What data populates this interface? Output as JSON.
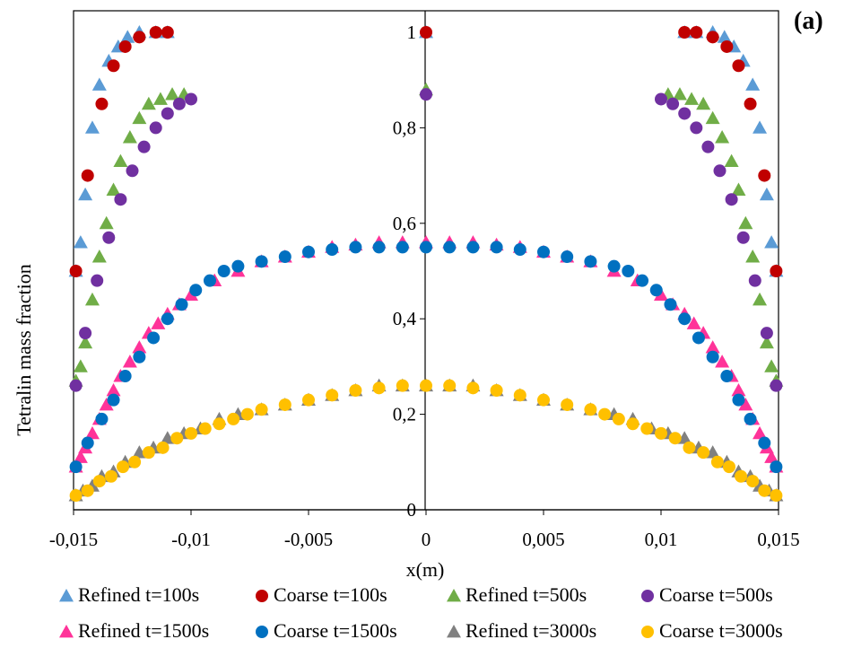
{
  "panel_label": "(a)",
  "chart_data": {
    "type": "scatter",
    "title": "",
    "xlabel": "x(m)",
    "ylabel": "Tetralin mass fraction",
    "xlim": [
      -0.015,
      0.015
    ],
    "ylim": [
      0,
      1
    ],
    "xticks": [
      "-0,015",
      "-0,01",
      "-0,005",
      "0",
      "0,005",
      "0,01",
      "0,015"
    ],
    "yticks": [
      "0",
      "0,2",
      "0,4",
      "0,6",
      "0,8",
      "1"
    ],
    "grid": false,
    "legend_position": "bottom",
    "series": [
      {
        "name": "Refined t=100s",
        "marker": "triangle",
        "color": "#5b9bd5",
        "x": [
          -0.0149,
          -0.0147,
          -0.0145,
          -0.0142,
          -0.0139,
          -0.0135,
          -0.0131,
          -0.0127,
          -0.0122,
          -0.0115,
          -0.011,
          0.0,
          0.011,
          0.0115,
          0.0122,
          0.0127,
          0.0131,
          0.0135,
          0.0139,
          0.0142,
          0.0145,
          0.0147,
          0.0149
        ],
        "y": [
          0.5,
          0.56,
          0.66,
          0.8,
          0.89,
          0.94,
          0.97,
          0.99,
          1.0,
          1.0,
          1.0,
          1.0,
          1.0,
          1.0,
          1.0,
          0.99,
          0.97,
          0.94,
          0.89,
          0.8,
          0.66,
          0.56,
          0.5
        ]
      },
      {
        "name": "Coarse t=100s",
        "marker": "circle",
        "color": "#c00000",
        "x": [
          -0.0149,
          -0.0144,
          -0.0138,
          -0.0133,
          -0.0128,
          -0.0122,
          -0.0115,
          -0.011,
          0.0,
          0.011,
          0.0115,
          0.0122,
          0.0128,
          0.0133,
          0.0138,
          0.0144,
          0.0149
        ],
        "y": [
          0.5,
          0.7,
          0.85,
          0.93,
          0.97,
          0.99,
          1.0,
          1.0,
          1.0,
          1.0,
          1.0,
          0.99,
          0.97,
          0.93,
          0.85,
          0.7,
          0.5
        ]
      },
      {
        "name": "Refined t=500s",
        "marker": "triangle",
        "color": "#70ad47",
        "x": [
          -0.0149,
          -0.0147,
          -0.0145,
          -0.0142,
          -0.0139,
          -0.0136,
          -0.0133,
          -0.013,
          -0.0126,
          -0.0122,
          -0.0118,
          -0.0113,
          -0.0108,
          -0.0103,
          0.0,
          0.0103,
          0.0108,
          0.0113,
          0.0118,
          0.0122,
          0.0126,
          0.013,
          0.0133,
          0.0136,
          0.0139,
          0.0142,
          0.0145,
          0.0147,
          0.0149
        ],
        "y": [
          0.27,
          0.3,
          0.35,
          0.44,
          0.53,
          0.6,
          0.67,
          0.73,
          0.78,
          0.82,
          0.85,
          0.86,
          0.87,
          0.87,
          0.88,
          0.87,
          0.87,
          0.86,
          0.85,
          0.82,
          0.78,
          0.73,
          0.67,
          0.6,
          0.53,
          0.44,
          0.35,
          0.3,
          0.27
        ]
      },
      {
        "name": "Coarse t=500s",
        "marker": "circle",
        "color": "#7030a0",
        "x": [
          -0.0149,
          -0.0145,
          -0.014,
          -0.0135,
          -0.013,
          -0.0125,
          -0.012,
          -0.0115,
          -0.011,
          -0.0105,
          -0.01,
          0.0,
          0.01,
          0.0105,
          0.011,
          0.0115,
          0.012,
          0.0125,
          0.013,
          0.0135,
          0.014,
          0.0145,
          0.0149
        ],
        "y": [
          0.26,
          0.37,
          0.48,
          0.57,
          0.65,
          0.71,
          0.76,
          0.8,
          0.83,
          0.85,
          0.86,
          0.87,
          0.86,
          0.85,
          0.83,
          0.8,
          0.76,
          0.71,
          0.65,
          0.57,
          0.48,
          0.37,
          0.26
        ]
      },
      {
        "name": "Refined t=1500s",
        "marker": "triangle",
        "color": "#ff3399",
        "x": [
          -0.0149,
          -0.0147,
          -0.0145,
          -0.0142,
          -0.0139,
          -0.0136,
          -0.0133,
          -0.013,
          -0.0126,
          -0.0122,
          -0.0118,
          -0.0114,
          -0.011,
          -0.0105,
          -0.01,
          -0.009,
          -0.008,
          -0.007,
          -0.006,
          -0.005,
          -0.004,
          -0.003,
          -0.002,
          -0.001,
          0.0,
          0.001,
          0.002,
          0.003,
          0.004,
          0.005,
          0.006,
          0.007,
          0.008,
          0.009,
          0.01,
          0.0105,
          0.011,
          0.0114,
          0.0118,
          0.0122,
          0.0126,
          0.013,
          0.0133,
          0.0136,
          0.0139,
          0.0142,
          0.0145,
          0.0147,
          0.0149
        ],
        "y": [
          0.09,
          0.11,
          0.13,
          0.16,
          0.19,
          0.22,
          0.25,
          0.28,
          0.31,
          0.34,
          0.37,
          0.39,
          0.41,
          0.43,
          0.45,
          0.48,
          0.5,
          0.52,
          0.53,
          0.54,
          0.55,
          0.555,
          0.56,
          0.56,
          0.56,
          0.56,
          0.56,
          0.555,
          0.55,
          0.54,
          0.53,
          0.52,
          0.5,
          0.48,
          0.45,
          0.43,
          0.41,
          0.39,
          0.37,
          0.34,
          0.31,
          0.28,
          0.25,
          0.22,
          0.19,
          0.16,
          0.13,
          0.11,
          0.09
        ]
      },
      {
        "name": "Coarse t=1500s",
        "marker": "circle",
        "color": "#0070c0",
        "x": [
          -0.0149,
          -0.0144,
          -0.0138,
          -0.0133,
          -0.0128,
          -0.0122,
          -0.0116,
          -0.011,
          -0.0104,
          -0.0098,
          -0.0092,
          -0.0086,
          -0.008,
          -0.007,
          -0.006,
          -0.005,
          -0.004,
          -0.003,
          -0.002,
          -0.001,
          0.0,
          0.001,
          0.002,
          0.003,
          0.004,
          0.005,
          0.006,
          0.007,
          0.008,
          0.0086,
          0.0092,
          0.0098,
          0.0104,
          0.011,
          0.0116,
          0.0122,
          0.0128,
          0.0133,
          0.0138,
          0.0144,
          0.0149
        ],
        "y": [
          0.09,
          0.14,
          0.19,
          0.23,
          0.28,
          0.32,
          0.36,
          0.4,
          0.43,
          0.46,
          0.48,
          0.5,
          0.51,
          0.52,
          0.53,
          0.54,
          0.545,
          0.55,
          0.55,
          0.55,
          0.55,
          0.55,
          0.55,
          0.55,
          0.545,
          0.54,
          0.53,
          0.52,
          0.51,
          0.5,
          0.48,
          0.46,
          0.43,
          0.4,
          0.36,
          0.32,
          0.28,
          0.23,
          0.19,
          0.14,
          0.09
        ]
      },
      {
        "name": "Refined t=3000s",
        "marker": "triangle",
        "color": "#808080",
        "x": [
          -0.0149,
          -0.0146,
          -0.0142,
          -0.0138,
          -0.0133,
          -0.0128,
          -0.0122,
          -0.0116,
          -0.011,
          -0.0103,
          -0.0096,
          -0.0088,
          -0.008,
          -0.007,
          -0.006,
          -0.005,
          -0.004,
          -0.003,
          -0.002,
          -0.001,
          0.0,
          0.001,
          0.002,
          0.003,
          0.004,
          0.005,
          0.006,
          0.007,
          0.008,
          0.0088,
          0.0096,
          0.0103,
          0.011,
          0.0116,
          0.0122,
          0.0128,
          0.0133,
          0.0138,
          0.0142,
          0.0146,
          0.0149
        ],
        "y": [
          0.03,
          0.04,
          0.05,
          0.07,
          0.08,
          0.1,
          0.12,
          0.13,
          0.15,
          0.16,
          0.17,
          0.19,
          0.2,
          0.21,
          0.22,
          0.23,
          0.24,
          0.25,
          0.26,
          0.26,
          0.26,
          0.26,
          0.26,
          0.25,
          0.24,
          0.23,
          0.22,
          0.21,
          0.2,
          0.19,
          0.17,
          0.16,
          0.15,
          0.13,
          0.12,
          0.1,
          0.08,
          0.07,
          0.05,
          0.04,
          0.03
        ]
      },
      {
        "name": "Coarse t=3000s",
        "marker": "circle",
        "color": "#ffc000",
        "x": [
          -0.0149,
          -0.0144,
          -0.0139,
          -0.0134,
          -0.0129,
          -0.0124,
          -0.0118,
          -0.0112,
          -0.0106,
          -0.01,
          -0.0094,
          -0.0088,
          -0.0082,
          -0.0076,
          -0.007,
          -0.006,
          -0.005,
          -0.004,
          -0.003,
          -0.002,
          -0.001,
          0.0,
          0.001,
          0.002,
          0.003,
          0.004,
          0.005,
          0.006,
          0.007,
          0.0076,
          0.0082,
          0.0088,
          0.0094,
          0.01,
          0.0106,
          0.0112,
          0.0118,
          0.0124,
          0.0129,
          0.0134,
          0.0139,
          0.0144,
          0.0149
        ],
        "y": [
          0.03,
          0.04,
          0.06,
          0.07,
          0.09,
          0.1,
          0.12,
          0.13,
          0.15,
          0.16,
          0.17,
          0.18,
          0.19,
          0.2,
          0.21,
          0.22,
          0.23,
          0.24,
          0.25,
          0.255,
          0.26,
          0.26,
          0.26,
          0.255,
          0.25,
          0.24,
          0.23,
          0.22,
          0.21,
          0.2,
          0.19,
          0.18,
          0.17,
          0.16,
          0.15,
          0.13,
          0.12,
          0.1,
          0.09,
          0.07,
          0.06,
          0.04,
          0.03
        ]
      }
    ]
  }
}
